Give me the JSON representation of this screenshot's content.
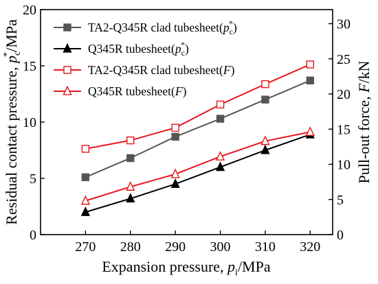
{
  "chart_data": {
    "type": "line",
    "title": "",
    "x": [
      270,
      280,
      290,
      300,
      310,
      320
    ],
    "xlabel": {
      "base": "Expansion pressure, ",
      "var": "p",
      "sub": "i",
      "unit": "/MPa"
    },
    "ylabel_left": {
      "base": "Residual contact pressure, ",
      "var": "p",
      "sub": "c",
      "sup": "*",
      "unit": "/MPa"
    },
    "ylabel_right": {
      "base": "Pull-out force, ",
      "var": "F",
      "unit": "/kN"
    },
    "xlim": [
      260,
      325
    ],
    "ylim_left": [
      0,
      20
    ],
    "ylim_right": [
      0,
      32
    ],
    "xticks": [
      270,
      280,
      290,
      300,
      310,
      320
    ],
    "yticks_left": [
      0,
      5,
      10,
      15,
      20
    ],
    "yticks_right": [
      0,
      5,
      10,
      15,
      20,
      25,
      30
    ],
    "grid": false,
    "legend_position": "top-left",
    "series": [
      {
        "name": "TA2-Q345R clad tubesheet",
        "legend_suffix": {
          "var": "p",
          "sub": "c",
          "sup": "*"
        },
        "axis": "left",
        "color": "#555555",
        "marker": "square-filled",
        "values": [
          5.1,
          6.8,
          8.7,
          10.3,
          12.0,
          13.7
        ]
      },
      {
        "name": "Q345R tubesheet",
        "legend_suffix": {
          "var": "p",
          "sub": "c",
          "sup": "*"
        },
        "axis": "left",
        "color": "#000000",
        "marker": "triangle-filled",
        "values": [
          2.0,
          3.2,
          4.5,
          6.0,
          7.5,
          8.9
        ]
      },
      {
        "name": "TA2-Q345R clad tubesheet",
        "legend_suffix": {
          "var": "F"
        },
        "axis": "right",
        "color": "#e8141a",
        "marker": "square-open",
        "values": [
          12.2,
          13.4,
          15.2,
          18.5,
          21.4,
          24.2
        ]
      },
      {
        "name": "Q345R tubesheet",
        "legend_suffix": {
          "var": "F"
        },
        "axis": "right",
        "color": "#e8141a",
        "marker": "triangle-open",
        "values": [
          4.8,
          6.8,
          8.6,
          11.1,
          13.3,
          14.6
        ]
      }
    ]
  }
}
